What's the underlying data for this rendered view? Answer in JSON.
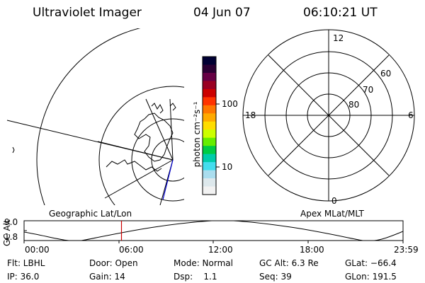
{
  "header": {
    "instrument": "Ultraviolet Imager",
    "date": "04 Jun 07",
    "time": "06:10:21 UT"
  },
  "colorbar": {
    "unit_label": "photon cm⁻²s⁻¹",
    "ticks": [
      "100",
      "10"
    ],
    "colors": [
      "#000033",
      "#2a0033",
      "#660044",
      "#990022",
      "#cc0000",
      "#ff3300",
      "#ff7700",
      "#ffaa00",
      "#ffdd00",
      "#ccff00",
      "#66ee00",
      "#00cc44",
      "#00ccaa",
      "#44ddee",
      "#aaddee",
      "#dde8ec",
      "#f2f2f2"
    ]
  },
  "polar_plot": {
    "mlt_labels": {
      "top": "12",
      "left": "18",
      "right": "6",
      "bottom": "0"
    },
    "lat_labels": [
      "60",
      "70",
      "80"
    ]
  },
  "timeline": {
    "axis_label": "GC Alt",
    "ymax": "9.0",
    "ymin": "1.8",
    "left_title": "Geographic Lat/Lon",
    "right_title": "Apex MLat/MLT",
    "xticks": [
      "00:00",
      "06:00",
      "12:00",
      "18:00",
      "23:59"
    ],
    "current_time_fraction": 0.2571,
    "marker_color": "#cc0000"
  },
  "info": {
    "flt": "Flt: LBHL",
    "ip": "IP: 36.0",
    "door": "Door: Open",
    "gain": "Gain: 14",
    "mode": "Mode: Normal",
    "dsp": "Dsp:    1.1",
    "gc_alt": "GC Alt: 6.3 Re",
    "seq": "Seq: 39",
    "glat": "GLat: −66.4",
    "glon": "GLon: 191.5"
  }
}
